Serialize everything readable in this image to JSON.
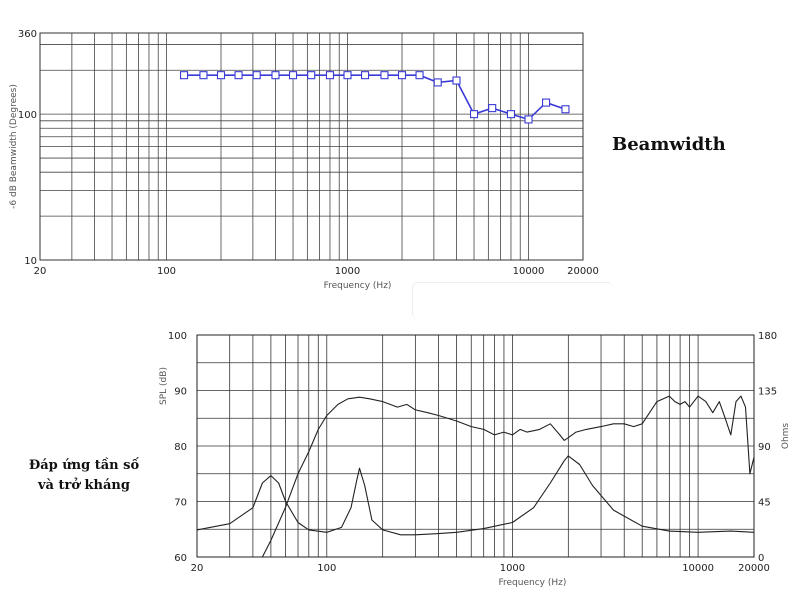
{
  "labels": {
    "beamwidth_title": "Beamwidth",
    "frequency_caption_line1": "Đáp ứng tần số",
    "frequency_caption_line2": "và trở kháng"
  },
  "chart_data": [
    {
      "type": "line",
      "title": "",
      "xlabel": "Frequency (Hz)",
      "ylabel": "-6 dB Beamwidth (Degrees)",
      "xscale": "log",
      "yscale": "log",
      "xlim": [
        20,
        20000
      ],
      "ylim": [
        10,
        360
      ],
      "x_tick_labels": [
        "20",
        "100",
        "1000",
        "10000",
        "20000"
      ],
      "y_tick_labels": [
        "10",
        "100",
        "360"
      ],
      "grid": true,
      "color": "#3a3ad6",
      "marker": "open-square",
      "series": [
        {
          "x": [
            125,
            160,
            200,
            250,
            315,
            400,
            500,
            630,
            800,
            1000,
            1250,
            1600,
            2000,
            2500,
            3150,
            4000,
            5000,
            6300,
            8000,
            10000,
            12500,
            16000
          ],
          "y": [
            185,
            185,
            185,
            185,
            185,
            185,
            185,
            185,
            185,
            185,
            185,
            185,
            185,
            185,
            165,
            170,
            100,
            110,
            100,
            92,
            120,
            108
          ]
        }
      ]
    },
    {
      "type": "line",
      "title": "",
      "xlabel": "Frequency (Hz)",
      "ylabel": "SPL (dB)",
      "y2label": "Ohms",
      "xscale": "log",
      "xlim": [
        20,
        20000
      ],
      "ylim": [
        60,
        100
      ],
      "y2lim": [
        0,
        180
      ],
      "x_tick_labels": [
        "20",
        "100",
        "1000",
        "10000",
        "20000"
      ],
      "y_tick_labels": [
        "60",
        "70",
        "80",
        "90",
        "100"
      ],
      "y2_tick_labels": [
        "0",
        "45",
        "90",
        "135",
        "180"
      ],
      "grid": true,
      "color": "#222222",
      "series": [
        {
          "axis": "left",
          "x": [
            45,
            50,
            60,
            70,
            80,
            90,
            100,
            115,
            130,
            150,
            170,
            200,
            240,
            270,
            300,
            350,
            400,
            500,
            600,
            700,
            800,
            900,
            1000,
            1100,
            1200,
            1400,
            1600,
            1800,
            1900,
            2000,
            2200,
            2500,
            3000,
            3500,
            4000,
            4500,
            5000,
            6000,
            7000,
            7500,
            8000,
            8500,
            9000,
            10000,
            11000,
            12000,
            13000,
            14000,
            15000,
            16000,
            17000,
            18000,
            19000,
            20000
          ],
          "y": [
            60,
            63,
            69,
            75,
            79,
            83,
            85.5,
            87.5,
            88.5,
            88.8,
            88.5,
            88,
            87,
            87.5,
            86.5,
            86,
            85.5,
            84.5,
            83.5,
            83,
            82,
            82.5,
            82,
            83,
            82.5,
            83,
            84,
            82,
            81,
            81.5,
            82.5,
            83,
            83.5,
            84,
            84,
            83.5,
            84,
            88,
            89,
            88,
            87.5,
            88,
            87,
            89,
            88,
            86,
            88,
            85,
            82,
            88,
            89,
            87,
            75,
            78
          ]
        },
        {
          "axis": "right",
          "x": [
            20,
            30,
            40,
            45,
            50,
            55,
            60,
            70,
            80,
            100,
            120,
            135,
            145,
            150,
            160,
            175,
            200,
            250,
            300,
            400,
            500,
            700,
            1000,
            1300,
            1600,
            1900,
            2000,
            2300,
            2700,
            3500,
            5000,
            7000,
            10000,
            15000,
            20000
          ],
          "y": [
            22,
            27,
            40,
            60,
            66,
            60,
            45,
            28,
            22,
            20,
            24,
            40,
            62,
            72,
            58,
            30,
            22,
            18,
            18,
            19,
            20,
            23,
            28,
            40,
            60,
            78,
            82,
            75,
            58,
            38,
            25,
            21,
            20,
            21,
            20
          ]
        }
      ]
    }
  ]
}
